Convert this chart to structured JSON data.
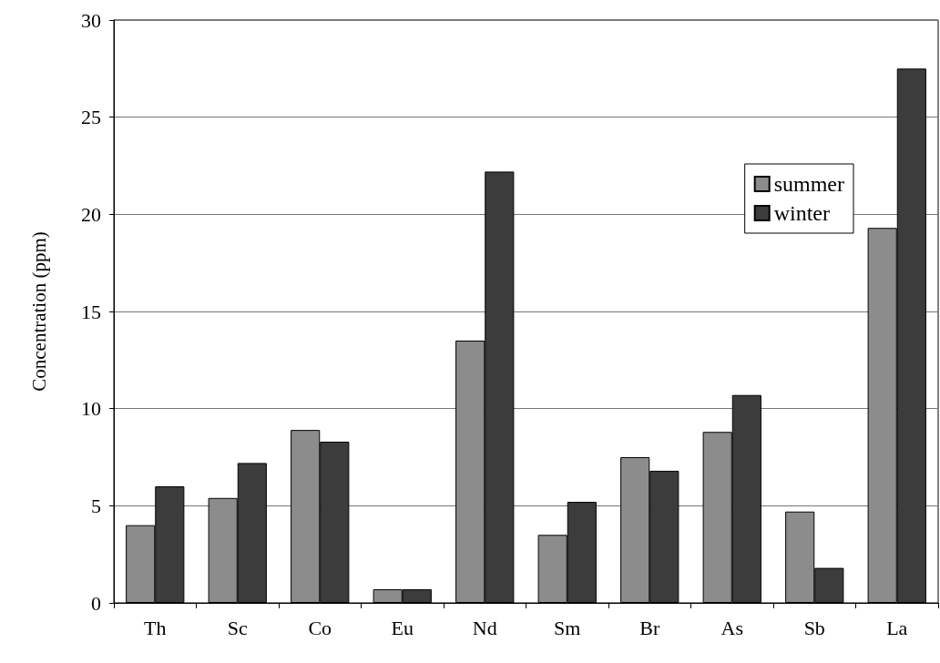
{
  "chart_data": {
    "type": "bar",
    "ylabel": "Concentration (ppm)",
    "categories": [
      "Th",
      "Sc",
      "Co",
      "Eu",
      "Nd",
      "Sm",
      "Br",
      "As",
      "Sb",
      "La"
    ],
    "series": [
      {
        "name": "summer",
        "color": "#8c8c8c",
        "values": [
          4.0,
          5.4,
          8.9,
          0.7,
          13.5,
          3.5,
          7.5,
          8.8,
          4.7,
          19.3
        ]
      },
      {
        "name": "winter",
        "color": "#3c3c3c",
        "values": [
          6.0,
          7.2,
          8.3,
          0.7,
          22.2,
          5.2,
          6.8,
          10.7,
          1.8,
          27.5
        ]
      }
    ],
    "ylim": [
      0,
      30
    ],
    "yticks": [
      0,
      5,
      10,
      15,
      20,
      25,
      30
    ],
    "grid": "y",
    "legend": "top right"
  }
}
